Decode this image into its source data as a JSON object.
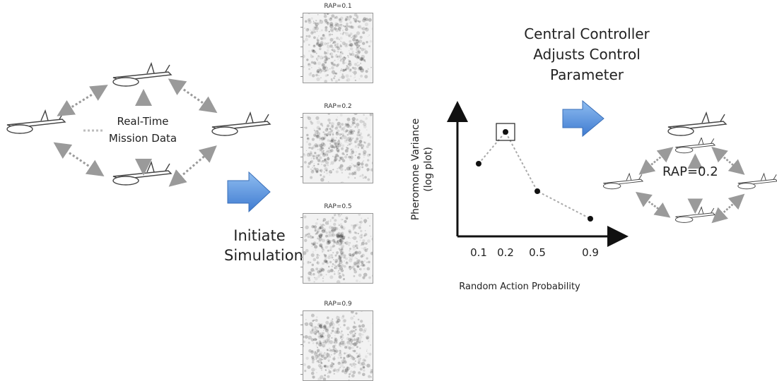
{
  "swarm_label": [
    "Real-Time",
    "Mission Data"
  ],
  "initiate_label": [
    "Initiate",
    "Simulations"
  ],
  "controller_label": [
    "Central Controller",
    "Adjusts Control",
    "Parameter"
  ],
  "swarm_result_label": "RAP=0.2",
  "simulations": [
    {
      "title": "RAP=0.1"
    },
    {
      "title": "RAP=0.2"
    },
    {
      "title": "RAP=0.5"
    },
    {
      "title": "RAP=0.9"
    }
  ],
  "chart_data": {
    "type": "line",
    "title": "",
    "xlabel": "Random Action Probability",
    "ylabel": "Pheromone Variance\n(log plot)",
    "categories": [
      "0.1",
      "0.2",
      "0.5",
      "0.9"
    ],
    "series": [
      {
        "values": [
          0.62,
          0.92,
          0.36,
          0.1
        ]
      }
    ],
    "ylim": [
      0,
      1
    ],
    "grid": false,
    "highlight": "0.2"
  },
  "colors": {
    "arrow_blue": "#4a86d8",
    "arrow_blue_light": "#8fbdf0",
    "dotted_arrow": "#9a9a9a",
    "line": "#111111"
  }
}
